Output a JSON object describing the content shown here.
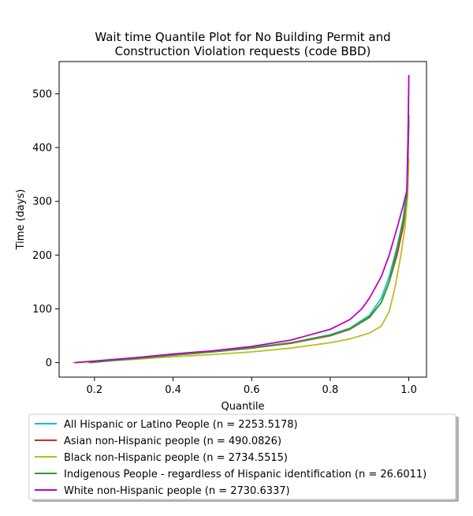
{
  "chart_data": {
    "type": "line",
    "title_lines": [
      "Wait time Quantile Plot for No Building Permit and",
      "Construction Violation  requests (code BBD)"
    ],
    "xlabel": "Quantile",
    "ylabel": "Time (days)",
    "xlim": [
      0.11,
      1.045
    ],
    "ylim": [
      -27,
      560
    ],
    "xticks": [
      0.2,
      0.4,
      0.6,
      0.8,
      1.0
    ],
    "xtick_labels": [
      "0.2",
      "0.4",
      "0.6",
      "0.8",
      "1.0"
    ],
    "yticks": [
      0,
      100,
      200,
      300,
      400,
      500
    ],
    "ytick_labels": [
      "0",
      "100",
      "200",
      "300",
      "400",
      "500"
    ],
    "grid": false,
    "legend_position": "below",
    "series": [
      {
        "name": "All Hispanic or Latino People (n = 2253.5178)",
        "color": "#17becf",
        "points": [
          [
            0.15,
            0
          ],
          [
            0.2,
            3
          ],
          [
            0.3,
            9
          ],
          [
            0.4,
            15
          ],
          [
            0.5,
            21
          ],
          [
            0.6,
            28
          ],
          [
            0.7,
            37
          ],
          [
            0.8,
            52
          ],
          [
            0.85,
            64
          ],
          [
            0.9,
            88
          ],
          [
            0.93,
            120
          ],
          [
            0.95,
            160
          ],
          [
            0.97,
            215
          ],
          [
            0.985,
            265
          ],
          [
            0.995,
            320
          ],
          [
            0.998,
            420
          ],
          [
            1.0,
            520
          ]
        ]
      },
      {
        "name": "Asian non-Hispanic people (n = 490.0826)",
        "color": "#d62728",
        "points": [
          [
            0.185,
            0
          ],
          [
            0.2,
            2
          ],
          [
            0.3,
            8
          ],
          [
            0.4,
            14
          ],
          [
            0.5,
            20
          ],
          [
            0.6,
            27
          ],
          [
            0.7,
            36
          ],
          [
            0.8,
            50
          ],
          [
            0.85,
            62
          ],
          [
            0.9,
            84
          ],
          [
            0.93,
            112
          ],
          [
            0.95,
            150
          ],
          [
            0.97,
            200
          ],
          [
            0.985,
            250
          ],
          [
            0.995,
            300
          ],
          [
            0.998,
            380
          ],
          [
            1.0,
            450
          ]
        ]
      },
      {
        "name": "Black non-Hispanic people (n = 2734.5515)",
        "color": "#bcbd22",
        "points": [
          [
            0.145,
            0
          ],
          [
            0.2,
            2
          ],
          [
            0.3,
            6
          ],
          [
            0.4,
            11
          ],
          [
            0.5,
            15
          ],
          [
            0.6,
            20
          ],
          [
            0.7,
            27
          ],
          [
            0.8,
            37
          ],
          [
            0.85,
            44
          ],
          [
            0.9,
            55
          ],
          [
            0.93,
            68
          ],
          [
            0.95,
            95
          ],
          [
            0.965,
            140
          ],
          [
            0.98,
            200
          ],
          [
            0.99,
            250
          ],
          [
            0.997,
            310
          ],
          [
            1.0,
            380
          ]
        ]
      },
      {
        "name": "Indigenous People - regardless of Hispanic identification (n = 26.6011)",
        "color": "#2ca02c",
        "points": [
          [
            0.19,
            0
          ],
          [
            0.25,
            4
          ],
          [
            0.3,
            7
          ],
          [
            0.4,
            14
          ],
          [
            0.5,
            20
          ],
          [
            0.6,
            27
          ],
          [
            0.7,
            37
          ],
          [
            0.8,
            51
          ],
          [
            0.85,
            63
          ],
          [
            0.9,
            85
          ],
          [
            0.93,
            112
          ],
          [
            0.95,
            150
          ],
          [
            0.97,
            210
          ],
          [
            0.985,
            260
          ],
          [
            0.995,
            310
          ],
          [
            0.998,
            400
          ],
          [
            1.0,
            460
          ]
        ]
      },
      {
        "name": "White non-Hispanic people (n = 2730.6337)",
        "color": "#bf00bf",
        "points": [
          [
            0.15,
            0
          ],
          [
            0.2,
            3
          ],
          [
            0.3,
            9
          ],
          [
            0.4,
            16
          ],
          [
            0.5,
            22
          ],
          [
            0.6,
            30
          ],
          [
            0.7,
            42
          ],
          [
            0.8,
            62
          ],
          [
            0.85,
            80
          ],
          [
            0.88,
            100
          ],
          [
            0.9,
            120
          ],
          [
            0.93,
            160
          ],
          [
            0.95,
            200
          ],
          [
            0.97,
            250
          ],
          [
            0.985,
            290
          ],
          [
            0.995,
            320
          ],
          [
            0.998,
            420
          ],
          [
            1.0,
            535
          ]
        ]
      }
    ]
  }
}
